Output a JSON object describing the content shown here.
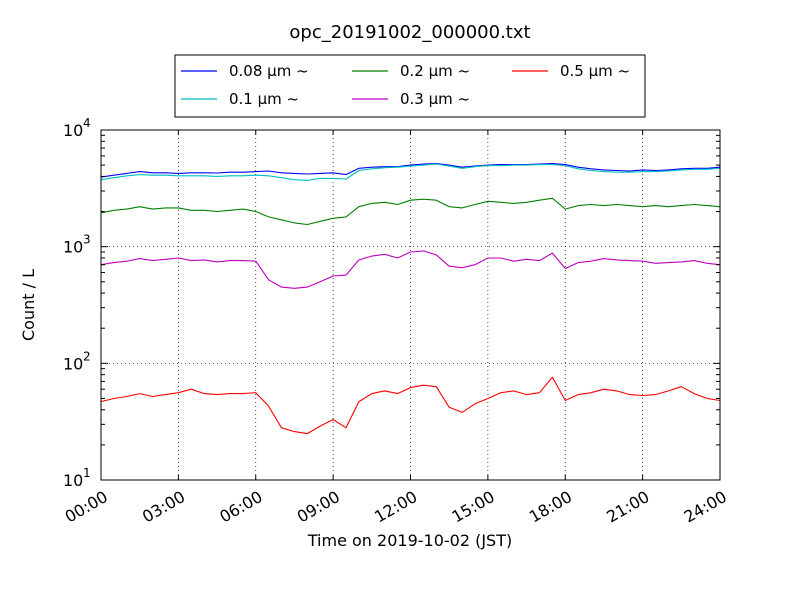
{
  "chart_data": {
    "type": "line",
    "title": "opc_20191002_000000.txt",
    "xlabel": "Time on 2019-10-02 (JST)",
    "ylabel": "Count / L",
    "x_unit": "hours",
    "xlim": [
      0,
      24
    ],
    "ylim": [
      10,
      10000
    ],
    "y_scale": "log",
    "grid": true,
    "grid_style": "dotted",
    "legend_position": "top-center",
    "legend_columns": 3,
    "x_ticks": [
      {
        "value": 0,
        "label": "00:00"
      },
      {
        "value": 3,
        "label": "03:00"
      },
      {
        "value": 6,
        "label": "06:00"
      },
      {
        "value": 9,
        "label": "09:00"
      },
      {
        "value": 12,
        "label": "12:00"
      },
      {
        "value": 15,
        "label": "15:00"
      },
      {
        "value": 18,
        "label": "18:00"
      },
      {
        "value": 21,
        "label": "21:00"
      },
      {
        "value": 24,
        "label": "24:00"
      }
    ],
    "y_ticks": [
      {
        "value": 10,
        "base": "10",
        "exp": "1"
      },
      {
        "value": 100,
        "base": "10",
        "exp": "2"
      },
      {
        "value": 1000,
        "base": "10",
        "exp": "3"
      },
      {
        "value": 10000,
        "base": "10",
        "exp": "4"
      }
    ],
    "x": [
      0,
      0.5,
      1,
      1.5,
      2,
      2.5,
      3,
      3.5,
      4,
      4.5,
      5,
      5.5,
      6,
      6.5,
      7,
      7.5,
      8,
      8.5,
      9,
      9.5,
      10,
      10.5,
      11,
      11.5,
      12,
      12.5,
      13,
      13.5,
      14,
      14.5,
      15,
      15.5,
      16,
      16.5,
      17,
      17.5,
      18,
      18.5,
      19,
      19.5,
      20,
      20.5,
      21,
      21.5,
      22,
      22.5,
      23,
      23.5,
      24
    ],
    "series": [
      {
        "name": "0.08 μm ~",
        "color": "#0000ff",
        "values": [
          3950,
          4100,
          4250,
          4400,
          4300,
          4300,
          4250,
          4300,
          4300,
          4280,
          4350,
          4350,
          4400,
          4450,
          4300,
          4250,
          4200,
          4250,
          4300,
          4150,
          4700,
          4800,
          4850,
          4850,
          5000,
          5100,
          5150,
          5000,
          4800,
          4900,
          5000,
          5050,
          5050,
          5050,
          5100,
          5150,
          5050,
          4800,
          4650,
          4550,
          4500,
          4450,
          4550,
          4500,
          4550,
          4650,
          4700,
          4700,
          4800
        ]
      },
      {
        "name": "0.1 μm ~",
        "color": "#00bfbf",
        "values": [
          3750,
          3900,
          4050,
          4150,
          4100,
          4100,
          4050,
          4050,
          4050,
          4000,
          4050,
          4050,
          4100,
          4050,
          3900,
          3750,
          3700,
          3850,
          3850,
          3800,
          4500,
          4650,
          4750,
          4800,
          4900,
          5000,
          5100,
          4900,
          4700,
          4850,
          4950,
          4950,
          5000,
          5000,
          5050,
          5050,
          4950,
          4650,
          4500,
          4400,
          4350,
          4350,
          4400,
          4400,
          4450,
          4550,
          4600,
          4600,
          4700
        ]
      },
      {
        "name": "0.2 μm ~",
        "color": "#008000",
        "values": [
          1950,
          2050,
          2100,
          2200,
          2100,
          2150,
          2150,
          2050,
          2050,
          2000,
          2050,
          2100,
          2000,
          1800,
          1700,
          1600,
          1550,
          1650,
          1750,
          1800,
          2200,
          2350,
          2400,
          2300,
          2500,
          2550,
          2500,
          2200,
          2150,
          2300,
          2450,
          2400,
          2350,
          2400,
          2500,
          2600,
          2100,
          2250,
          2300,
          2250,
          2300,
          2250,
          2200,
          2250,
          2200,
          2250,
          2300,
          2250,
          2200
        ]
      },
      {
        "name": "0.3 μm ~",
        "color": "#bf00bf",
        "values": [
          700,
          730,
          750,
          790,
          760,
          780,
          800,
          760,
          770,
          740,
          760,
          760,
          750,
          520,
          450,
          440,
          450,
          500,
          560,
          570,
          770,
          830,
          860,
          800,
          900,
          920,
          850,
          680,
          660,
          700,
          800,
          800,
          750,
          780,
          760,
          880,
          650,
          730,
          750,
          790,
          770,
          760,
          750,
          720,
          730,
          740,
          760,
          720,
          700
        ]
      },
      {
        "name": "0.5 μm ~",
        "color": "#ff0000",
        "values": [
          47,
          50,
          52,
          55,
          52,
          54,
          56,
          60,
          55,
          54,
          55,
          55,
          56,
          43,
          28,
          26,
          25,
          29,
          33,
          28,
          47,
          55,
          58,
          55,
          62,
          65,
          63,
          42,
          38,
          45,
          50,
          56,
          58,
          54,
          56,
          76,
          48,
          54,
          56,
          60,
          58,
          54,
          53,
          54,
          58,
          63,
          55,
          50,
          48
        ]
      }
    ]
  }
}
